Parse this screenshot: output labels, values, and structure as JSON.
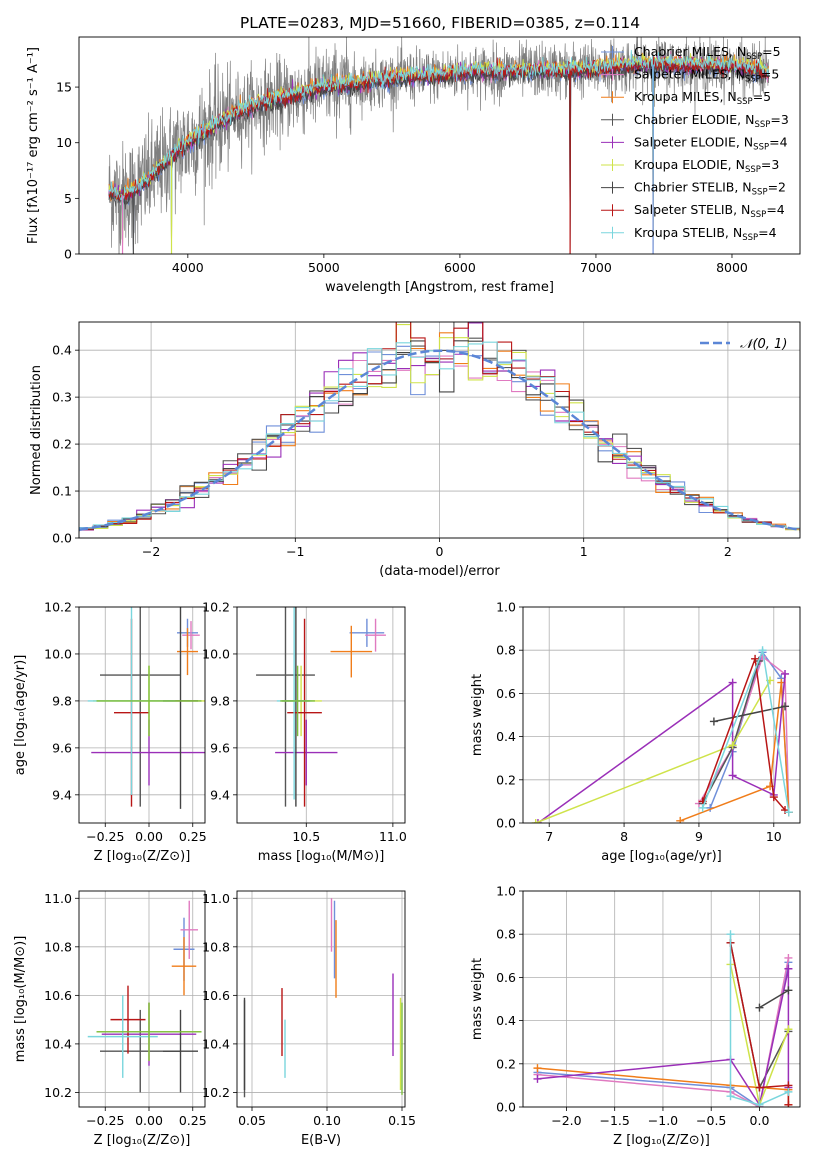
{
  "figure_title": "PLATE=0283, MJD=51660, FIBERID=0385, z=0.114",
  "colors": {
    "Chabrier MILES": "#6f8fd9",
    "Salpeter MILES": "#e07ac0",
    "Kroupa MILES": "#f07d1a",
    "Chabrier ELODIE": "#555555",
    "Salpeter ELODIE": "#9a2fb8",
    "Kroupa ELODIE": "#cfe34a",
    "Chabrier STELIB": "#444444",
    "Salpeter STELIB": "#b81616",
    "Kroupa STELIB": "#7ad6dd",
    "extra_green": "#7dbd3d",
    "gaussian": "#5b86d6",
    "data_gray": "#7f7f7f"
  },
  "chart_data": [
    {
      "id": "spectrum",
      "type": "line",
      "xlabel": "wavelength [Angstrom, rest frame]",
      "ylabel": "Flux [fλ10⁻¹⁷ erg cm⁻² s⁻¹ A⁻¹]",
      "xlim": [
        3200,
        8500
      ],
      "ylim": [
        0,
        19.5
      ],
      "xticks": [
        4000,
        5000,
        6000,
        7000,
        8000
      ],
      "yticks": [
        0,
        5,
        10,
        15
      ],
      "grid": false,
      "legend_position": "upper-right",
      "legend": [
        {
          "label": "Chabrier MILES, N",
          "sub": "SSP",
          "suffix": "=5",
          "series": "Chabrier MILES"
        },
        {
          "label": "Salpeter MILES, N",
          "sub": "SSP",
          "suffix": "=5",
          "series": "Salpeter MILES"
        },
        {
          "label": "Kroupa MILES, N",
          "sub": "SSP",
          "suffix": "=5",
          "series": "Kroupa MILES"
        },
        {
          "label": "Chabrier ELODIE, N",
          "sub": "SSP",
          "suffix": "=3",
          "series": "Chabrier ELODIE"
        },
        {
          "label": "Salpeter ELODIE, N",
          "sub": "SSP",
          "suffix": "=4",
          "series": "Salpeter ELODIE"
        },
        {
          "label": "Kroupa ELODIE, N",
          "sub": "SSP",
          "suffix": "=3",
          "series": "Kroupa ELODIE"
        },
        {
          "label": "Chabrier STELIB, N",
          "sub": "SSP",
          "suffix": "=2",
          "series": "Chabrier STELIB"
        },
        {
          "label": "Salpeter STELIB, N",
          "sub": "SSP",
          "suffix": "=4",
          "series": "Salpeter STELIB"
        },
        {
          "label": "Kroupa STELIB, N",
          "sub": "SSP",
          "suffix": "=4",
          "series": "Kroupa STELIB"
        }
      ],
      "continuum": {
        "wavelength": [
          3420,
          3500,
          3600,
          3700,
          3800,
          3900,
          4000,
          4100,
          4200,
          4300,
          4400,
          4500,
          4600,
          4700,
          4800,
          4900,
          5000,
          5200,
          5400,
          5600,
          5800,
          6000,
          6200,
          6400,
          6600,
          6800,
          7000,
          7200,
          7400,
          7600,
          7800,
          8000,
          8270
        ],
        "flux": [
          5.6,
          5.2,
          5.6,
          6.6,
          7.8,
          9.0,
          10.0,
          10.8,
          11.5,
          12.3,
          12.9,
          13.4,
          13.7,
          14.0,
          14.3,
          14.7,
          15.0,
          15.3,
          15.6,
          15.9,
          16.0,
          16.3,
          16.4,
          16.4,
          16.5,
          16.5,
          16.6,
          16.9,
          17.0,
          17.0,
          16.9,
          16.9,
          16.3
        ]
      },
      "data_noise_flux": 2.5,
      "downward_spikes_wavelength": [
        3520,
        3600,
        3880,
        6810,
        7420
      ]
    },
    {
      "id": "residuals",
      "type": "bar",
      "xlabel": "(data-model)/error",
      "ylabel": "Normed distribution",
      "xlim": [
        -2.5,
        2.5
      ],
      "ylim": [
        0,
        0.46
      ],
      "xticks": [
        -2,
        -1,
        0,
        1,
        2
      ],
      "xtick_labels": [
        "−2",
        "−1",
        "0",
        "1",
        "2"
      ],
      "yticks": [
        0.0,
        0.1,
        0.2,
        0.3,
        0.4
      ],
      "grid": true,
      "legend_position": "upper-right",
      "gaussian_label": "𝒩(0, 1)",
      "bin_width": 0.1
    },
    {
      "id": "age_vs_z",
      "type": "scatter",
      "xlabel": "Z [log₁₀(Z/Z⊙)]",
      "ylabel": "age  [log₁₀(age/yr)]",
      "xlim": [
        -0.4,
        0.32
      ],
      "ylim": [
        9.28,
        10.2
      ],
      "xticks": [
        -0.25,
        0.0,
        0.25
      ],
      "xtick_labels": [
        "−0.25",
        "0.00",
        "0.25"
      ],
      "yticks": [
        9.4,
        9.6,
        9.8,
        10.0,
        10.2
      ],
      "grid": true,
      "points": [
        {
          "s": "Chabrier MILES",
          "x": 0.22,
          "y": 10.09,
          "xe": 0.06,
          "ye": 0.06
        },
        {
          "s": "Salpeter MILES",
          "x": 0.24,
          "y": 10.08,
          "xe": 0.05,
          "ye": 0.06
        },
        {
          "s": "Kroupa MILES",
          "x": 0.22,
          "y": 10.01,
          "xe": 0.06,
          "ye": 0.1
        },
        {
          "s": "Chabrier ELODIE",
          "x": -0.05,
          "y": 9.91,
          "xe": 0.23,
          "ye": 0.56
        },
        {
          "s": "Salpeter ELODIE",
          "x": 0.0,
          "y": 9.58,
          "xe": 0.33,
          "ye": 0.14
        },
        {
          "s": "Kroupa ELODIE",
          "x": 0.0,
          "y": 9.8,
          "xe": 0.32,
          "ye": 0.15
        },
        {
          "s": "Chabrier STELIB",
          "x": 0.18,
          "y": 9.8,
          "xe": 0.1,
          "ye": 0.46
        },
        {
          "s": "Salpeter STELIB",
          "x": -0.1,
          "y": 9.75,
          "xe": 0.1,
          "ye": 0.4
        },
        {
          "s": "Kroupa STELIB",
          "x": -0.1,
          "y": 9.8,
          "xe": 0.25,
          "ye": 0.4
        },
        {
          "s": "extra_green",
          "x": 0.0,
          "y": 9.8,
          "xe": 0.3,
          "ye": 0.15
        }
      ]
    },
    {
      "id": "age_vs_mass",
      "type": "scatter",
      "xlabel": "mass [log₁₀(M/M⊙)]",
      "ylabel": "",
      "xlim": [
        10.1,
        11.07
      ],
      "ylim": [
        9.28,
        10.2
      ],
      "xticks": [
        10.5,
        11.0
      ],
      "xtick_labels": [
        "10.5",
        "11.0"
      ],
      "yticks": [
        9.4,
        9.6,
        9.8,
        10.0,
        10.2
      ],
      "grid": true,
      "points": [
        {
          "s": "Chabrier MILES",
          "x": 10.85,
          "y": 10.09,
          "xe": 0.1,
          "ye": 0.06
        },
        {
          "s": "Salpeter MILES",
          "x": 10.9,
          "y": 10.08,
          "xe": 0.06,
          "ye": 0.07
        },
        {
          "s": "Kroupa MILES",
          "x": 10.76,
          "y": 10.01,
          "xe": 0.12,
          "ye": 0.11
        },
        {
          "s": "Chabrier ELODIE",
          "x": 10.38,
          "y": 9.91,
          "xe": 0.17,
          "ye": 0.56
        },
        {
          "s": "Salpeter ELODIE",
          "x": 10.5,
          "y": 9.58,
          "xe": 0.18,
          "ye": 0.14
        },
        {
          "s": "Kroupa ELODIE",
          "x": 10.47,
          "y": 9.8,
          "xe": 0.12,
          "ye": 0.15
        },
        {
          "s": "Chabrier STELIB",
          "x": 10.44,
          "y": 9.8,
          "xe": 0.08,
          "ye": 0.45
        },
        {
          "s": "Salpeter STELIB",
          "x": 10.49,
          "y": 9.75,
          "xe": 0.1,
          "ye": 0.4
        },
        {
          "s": "Kroupa STELIB",
          "x": 10.43,
          "y": 9.8,
          "xe": 0.1,
          "ye": 0.42
        },
        {
          "s": "extra_green",
          "x": 10.45,
          "y": 9.8,
          "xe": 0.1,
          "ye": 0.15
        }
      ]
    },
    {
      "id": "weight_vs_age",
      "type": "line",
      "xlabel": "age  [log₁₀(age/yr)]",
      "ylabel": "mass weight",
      "xlim": [
        6.65,
        10.35
      ],
      "ylim": [
        0.0,
        1.0
      ],
      "xticks": [
        7,
        8,
        9,
        10
      ],
      "yticks": [
        0.0,
        0.2,
        0.4,
        0.6,
        0.8,
        1.0
      ],
      "grid": true,
      "series": [
        {
          "s": "Chabrier MILES",
          "x": [
            9.15,
            9.45,
            9.85,
            10.1,
            10.2
          ],
          "y": [
            0.07,
            0.33,
            0.79,
            0.67,
            0.05
          ]
        },
        {
          "s": "Salpeter MILES",
          "x": [
            9.0,
            9.45,
            9.85,
            10.15,
            10.2
          ],
          "y": [
            0.09,
            0.35,
            0.77,
            0.69,
            0.05
          ]
        },
        {
          "s": "Kroupa MILES",
          "x": [
            8.75,
            9.95,
            10.1,
            10.2
          ],
          "y": [
            0.01,
            0.17,
            0.65,
            0.05
          ]
        },
        {
          "s": "Chabrier ELODIE",
          "x": [
            9.05,
            9.45,
            9.8
          ],
          "y": [
            0.09,
            0.35,
            0.75
          ]
        },
        {
          "s": "Salpeter ELODIE",
          "x": [
            6.85,
            9.45,
            9.45,
            10.0,
            10.15
          ],
          "y": [
            0.0,
            0.65,
            0.22,
            0.13,
            0.69
          ]
        },
        {
          "s": "Kroupa ELODIE",
          "x": [
            6.82,
            9.45,
            9.95
          ],
          "y": [
            0.0,
            0.36,
            0.66
          ]
        },
        {
          "s": "Chabrier STELIB",
          "x": [
            9.2,
            10.15
          ],
          "y": [
            0.47,
            0.54
          ]
        },
        {
          "s": "Salpeter STELIB",
          "x": [
            9.05,
            9.75,
            10.0,
            10.15
          ],
          "y": [
            0.1,
            0.76,
            0.12,
            0.06
          ]
        },
        {
          "s": "Kroupa STELIB",
          "x": [
            9.05,
            9.85,
            10.2
          ],
          "y": [
            0.07,
            0.8,
            0.05
          ]
        }
      ]
    },
    {
      "id": "mass_vs_z",
      "type": "scatter",
      "xlabel": "Z [log₁₀(Z/Z⊙)]",
      "ylabel": "mass [log₁₀(M/M⊙)]",
      "xlim": [
        -0.4,
        0.32
      ],
      "ylim": [
        10.14,
        11.03
      ],
      "xticks": [
        -0.25,
        0.0,
        0.25
      ],
      "xtick_labels": [
        "−0.25",
        "0.00",
        "0.25"
      ],
      "yticks": [
        10.2,
        10.4,
        10.6,
        10.8,
        11.0
      ],
      "grid": true,
      "points": [
        {
          "s": "Chabrier MILES",
          "x": 0.2,
          "y": 10.79,
          "xe": 0.06,
          "ye": 0.13
        },
        {
          "s": "Salpeter MILES",
          "x": 0.23,
          "y": 10.87,
          "xe": 0.05,
          "ye": 0.12
        },
        {
          "s": "Kroupa MILES",
          "x": 0.2,
          "y": 10.72,
          "xe": 0.07,
          "ye": 0.12
        },
        {
          "s": "Chabrier ELODIE",
          "x": -0.05,
          "y": 10.37,
          "xe": 0.23,
          "ye": 0.17
        },
        {
          "s": "Salpeter ELODIE",
          "x": 0.0,
          "y": 10.44,
          "xe": 0.27,
          "ye": 0.13
        },
        {
          "s": "Kroupa ELODIE",
          "x": 0.0,
          "y": 10.45,
          "xe": 0.3,
          "ye": 0.12
        },
        {
          "s": "Chabrier STELIB",
          "x": 0.18,
          "y": 10.37,
          "xe": 0.1,
          "ye": 0.17
        },
        {
          "s": "Salpeter STELIB",
          "x": -0.12,
          "y": 10.5,
          "xe": 0.1,
          "ye": 0.14
        },
        {
          "s": "Kroupa STELIB",
          "x": -0.15,
          "y": 10.43,
          "xe": 0.2,
          "ye": 0.17
        },
        {
          "s": "extra_green",
          "x": 0.0,
          "y": 10.45,
          "xe": 0.3,
          "ye": 0.12
        }
      ]
    },
    {
      "id": "mass_vs_ebv",
      "type": "scatter",
      "xlabel": "E(B-V)",
      "ylabel": "",
      "xlim": [
        0.04,
        0.152
      ],
      "ylim": [
        10.14,
        11.03
      ],
      "xticks": [
        0.05,
        0.1,
        0.15
      ],
      "xtick_labels": [
        "0.05",
        "0.10",
        "0.15"
      ],
      "yticks": [
        10.2,
        10.4,
        10.6,
        10.8,
        11.0
      ],
      "grid": true,
      "points": [
        {
          "s": "Chabrier MILES",
          "x": 0.105,
          "y": 10.83,
          "xe": 0.0,
          "ye": 0.16
        },
        {
          "s": "Salpeter MILES",
          "x": 0.103,
          "y": 10.89,
          "xe": 0.0,
          "ye": 0.11
        },
        {
          "s": "Kroupa MILES",
          "x": 0.106,
          "y": 10.75,
          "xe": 0.0,
          "ye": 0.16
        },
        {
          "s": "Chabrier ELODIE",
          "x": 0.045,
          "y": 10.38,
          "xe": 0.0,
          "ye": 0.2
        },
        {
          "s": "Salpeter ELODIE",
          "x": 0.144,
          "y": 10.52,
          "xe": 0.0,
          "ye": 0.17
        },
        {
          "s": "Kroupa ELODIE",
          "x": 0.149,
          "y": 10.4,
          "xe": 0.0,
          "ye": 0.19
        },
        {
          "s": "Chabrier STELIB",
          "x": 0.045,
          "y": 10.4,
          "xe": 0.0,
          "ye": 0.19
        },
        {
          "s": "Salpeter STELIB",
          "x": 0.07,
          "y": 10.49,
          "xe": 0.0,
          "ye": 0.14
        },
        {
          "s": "Kroupa STELIB",
          "x": 0.072,
          "y": 10.38,
          "xe": 0.0,
          "ye": 0.12
        },
        {
          "s": "extra_green",
          "x": 0.15,
          "y": 10.38,
          "xe": 0.0,
          "ye": 0.19
        }
      ]
    },
    {
      "id": "weight_vs_z",
      "type": "line",
      "xlabel": "Z [log₁₀(Z/Z⊙)]",
      "ylabel": "mass weight",
      "xlim": [
        -2.45,
        0.42
      ],
      "ylim": [
        0.0,
        1.0
      ],
      "xticks": [
        -2.0,
        -1.5,
        -1.0,
        -0.5,
        0.0
      ],
      "xtick_labels": [
        "−2.0",
        "−1.5",
        "−1.0",
        "−0.5",
        "0.0"
      ],
      "yticks": [
        0.0,
        0.2,
        0.4,
        0.6,
        0.8,
        1.0
      ],
      "grid": true,
      "series": [
        {
          "s": "Chabrier MILES",
          "x": [
            -2.3,
            -0.3,
            0.0,
            0.3
          ],
          "y": [
            0.16,
            0.09,
            0.0,
            0.67
          ]
        },
        {
          "s": "Salpeter MILES",
          "x": [
            -2.3,
            -0.3,
            0.0,
            0.3
          ],
          "y": [
            0.15,
            0.07,
            0.0,
            0.69
          ]
        },
        {
          "s": "Kroupa MILES",
          "x": [
            -2.3,
            -0.3,
            0.3,
            0.3
          ],
          "y": [
            0.18,
            0.1,
            0.08,
            0.01
          ]
        },
        {
          "s": "Chabrier ELODIE",
          "x": [
            -0.3,
            0.0,
            0.3
          ],
          "y": [
            0.76,
            0.09,
            0.35
          ]
        },
        {
          "s": "Salpeter ELODIE",
          "x": [
            -2.3,
            -0.3,
            0.0,
            0.3,
            0.3
          ],
          "y": [
            0.13,
            0.22,
            0.01,
            0.64,
            0.09
          ]
        },
        {
          "s": "Kroupa ELODIE",
          "x": [
            -0.3,
            0.0,
            0.3
          ],
          "y": [
            0.66,
            0.01,
            0.36
          ]
        },
        {
          "s": "Chabrier STELIB",
          "x": [
            0.0,
            0.3
          ],
          "y": [
            0.46,
            0.54
          ]
        },
        {
          "s": "Salpeter STELIB",
          "x": [
            -0.3,
            0.0,
            0.3,
            0.3
          ],
          "y": [
            0.76,
            0.09,
            0.1,
            0.01
          ]
        },
        {
          "s": "Kroupa STELIB",
          "x": [
            -0.3,
            -0.3,
            0.0,
            0.3
          ],
          "y": [
            0.8,
            0.05,
            0.01,
            0.07
          ]
        }
      ]
    }
  ]
}
